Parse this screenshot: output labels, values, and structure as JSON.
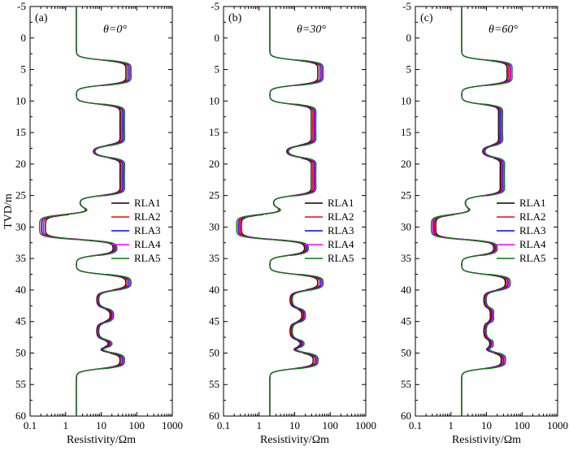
{
  "colors": {
    "RLA1": "#000000",
    "RLA2": "#ff0000",
    "RLA3": "#0000ff",
    "RLA4": "#ff00ff",
    "RLA5": "#008000"
  },
  "chart_data": [
    {
      "type": "line",
      "panel_label": "(a)",
      "theta_label": "θ=0°",
      "xlabel": "Resistivity/Ωm",
      "ylabel": "TVD/m",
      "xscale": "log",
      "xlim": [
        0.1,
        1000
      ],
      "ylim": [
        60,
        -5
      ],
      "x_ticks": [
        "0.1",
        "1",
        "10",
        "100",
        "1000"
      ],
      "y_ticks": [
        "-5",
        "0",
        "5",
        "10",
        "15",
        "20",
        "25",
        "30",
        "35",
        "40",
        "45",
        "50",
        "55",
        "60"
      ],
      "legend": [
        "RLA1",
        "RLA2",
        "RLA3",
        "RLA4",
        "RLA5"
      ],
      "legend_position": "right-middle",
      "layers": [
        {
          "top": -5,
          "bottom": 3.5,
          "value": 2
        },
        {
          "top": 3.5,
          "bottom": 7.5,
          "value": 60
        },
        {
          "top": 7.5,
          "bottom": 10.5,
          "value": 2
        },
        {
          "top": 10.5,
          "bottom": 17,
          "value": 40
        },
        {
          "top": 17,
          "bottom": 19,
          "value": 6
        },
        {
          "top": 19,
          "bottom": 25,
          "value": 40
        },
        {
          "top": 25,
          "bottom": 27,
          "value": 2.5
        },
        {
          "top": 27,
          "bottom": 28,
          "value": 5
        },
        {
          "top": 28,
          "bottom": 32,
          "value": 0.2
        },
        {
          "top": 32,
          "bottom": 34.5,
          "value": 25
        },
        {
          "top": 34.5,
          "bottom": 37.5,
          "value": 2
        },
        {
          "top": 37.5,
          "bottom": 40,
          "value": 60
        },
        {
          "top": 40,
          "bottom": 43,
          "value": 8
        },
        {
          "top": 43,
          "bottom": 45,
          "value": 20
        },
        {
          "top": 45,
          "bottom": 48,
          "value": 8
        },
        {
          "top": 48,
          "bottom": 49,
          "value": 20
        },
        {
          "top": 49,
          "bottom": 50,
          "value": 8
        },
        {
          "top": 50,
          "bottom": 52.5,
          "value": 40
        },
        {
          "top": 52.5,
          "bottom": 60,
          "value": 2
        }
      ],
      "series": [
        {
          "name": "RLA1",
          "factor_res": 0.82,
          "factor_cond": 1.35
        },
        {
          "name": "RLA2",
          "factor_res": 0.9,
          "factor_cond": 1.2
        },
        {
          "name": "RLA3",
          "factor_res": 1.0,
          "factor_cond": 1.08
        },
        {
          "name": "RLA4",
          "factor_res": 1.08,
          "factor_cond": 1.02
        },
        {
          "name": "RLA5",
          "factor_res": 1.15,
          "factor_cond": 0.92
        }
      ]
    },
    {
      "type": "line",
      "panel_label": "(b)",
      "theta_label": "θ=30°",
      "xlabel": "Resistivity/Ωm",
      "ylabel": "",
      "xscale": "log",
      "xlim": [
        0.1,
        1000
      ],
      "ylim": [
        60,
        -5
      ],
      "x_ticks": [
        "0.1",
        "1",
        "10",
        "100",
        "1000"
      ],
      "y_ticks": [
        "-5",
        "0",
        "5",
        "10",
        "15",
        "20",
        "25",
        "30",
        "35",
        "40",
        "45",
        "50",
        "55",
        "60"
      ],
      "legend": [
        "RLA1",
        "RLA2",
        "RLA3",
        "RLA4",
        "RLA5"
      ],
      "legend_position": "right-middle",
      "layers": [
        {
          "top": -5,
          "bottom": 3.5,
          "value": 2
        },
        {
          "top": 3.5,
          "bottom": 7.5,
          "value": 55
        },
        {
          "top": 7.5,
          "bottom": 10.5,
          "value": 2
        },
        {
          "top": 10.5,
          "bottom": 17,
          "value": 35
        },
        {
          "top": 17,
          "bottom": 19,
          "value": 6
        },
        {
          "top": 19,
          "bottom": 25,
          "value": 35
        },
        {
          "top": 25,
          "bottom": 27,
          "value": 2.5
        },
        {
          "top": 27,
          "bottom": 28,
          "value": 5
        },
        {
          "top": 28,
          "bottom": 32,
          "value": 0.25
        },
        {
          "top": 32,
          "bottom": 34.5,
          "value": 22
        },
        {
          "top": 34.5,
          "bottom": 37.5,
          "value": 2
        },
        {
          "top": 37.5,
          "bottom": 40,
          "value": 55
        },
        {
          "top": 40,
          "bottom": 43,
          "value": 8
        },
        {
          "top": 43,
          "bottom": 45,
          "value": 18
        },
        {
          "top": 45,
          "bottom": 48,
          "value": 8
        },
        {
          "top": 48,
          "bottom": 49,
          "value": 18
        },
        {
          "top": 49,
          "bottom": 50,
          "value": 8
        },
        {
          "top": 50,
          "bottom": 52.5,
          "value": 40
        },
        {
          "top": 52.5,
          "bottom": 60,
          "value": 2
        }
      ],
      "series": [
        {
          "name": "RLA1",
          "factor_res": 0.8,
          "factor_cond": 1.3
        },
        {
          "name": "RLA2",
          "factor_res": 0.9,
          "factor_cond": 1.18
        },
        {
          "name": "RLA3",
          "factor_res": 1.0,
          "factor_cond": 1.08
        },
        {
          "name": "RLA4",
          "factor_res": 1.08,
          "factor_cond": 1.02
        },
        {
          "name": "RLA5",
          "factor_res": 1.15,
          "factor_cond": 0.92
        }
      ]
    },
    {
      "type": "line",
      "panel_label": "(c)",
      "theta_label": "θ=60°",
      "xlabel": "Resistivity/Ωm",
      "ylabel": "",
      "xscale": "log",
      "xlim": [
        0.1,
        1000
      ],
      "ylim": [
        60,
        -5
      ],
      "x_ticks": [
        "0.1",
        "1",
        "10",
        "100",
        "1000"
      ],
      "y_ticks": [
        "-5",
        "0",
        "5",
        "10",
        "15",
        "20",
        "25",
        "30",
        "35",
        "40",
        "45",
        "50",
        "55",
        "60"
      ],
      "legend": [
        "RLA1",
        "RLA2",
        "RLA3",
        "RLA4",
        "RLA5"
      ],
      "legend_position": "right-middle",
      "layers": [
        {
          "top": -5,
          "bottom": 3.5,
          "value": 2
        },
        {
          "top": 3.5,
          "bottom": 7.5,
          "value": 45
        },
        {
          "top": 7.5,
          "bottom": 10.5,
          "value": 2
        },
        {
          "top": 10.5,
          "bottom": 17,
          "value": 25
        },
        {
          "top": 17,
          "bottom": 19,
          "value": 8
        },
        {
          "top": 19,
          "bottom": 25,
          "value": 28
        },
        {
          "top": 25,
          "bottom": 27,
          "value": 2.5
        },
        {
          "top": 27,
          "bottom": 28,
          "value": 4
        },
        {
          "top": 28,
          "bottom": 32,
          "value": 0.3
        },
        {
          "top": 32,
          "bottom": 34.5,
          "value": 18
        },
        {
          "top": 34.5,
          "bottom": 37.5,
          "value": 2
        },
        {
          "top": 37.5,
          "bottom": 40,
          "value": 40
        },
        {
          "top": 40,
          "bottom": 43,
          "value": 9
        },
        {
          "top": 43,
          "bottom": 45,
          "value": 14
        },
        {
          "top": 45,
          "bottom": 48,
          "value": 9
        },
        {
          "top": 48,
          "bottom": 49,
          "value": 14
        },
        {
          "top": 49,
          "bottom": 50,
          "value": 9
        },
        {
          "top": 50,
          "bottom": 52.5,
          "value": 30
        },
        {
          "top": 52.5,
          "bottom": 60,
          "value": 2
        }
      ],
      "series": [
        {
          "name": "RLA1",
          "factor_res": 0.82,
          "factor_cond": 1.3
        },
        {
          "name": "RLA2",
          "factor_res": 0.9,
          "factor_cond": 1.18
        },
        {
          "name": "RLA3",
          "factor_res": 1.0,
          "factor_cond": 1.08
        },
        {
          "name": "RLA4",
          "factor_res": 1.08,
          "factor_cond": 1.02
        },
        {
          "name": "RLA5",
          "factor_res": 1.18,
          "factor_cond": 0.92
        }
      ]
    }
  ]
}
